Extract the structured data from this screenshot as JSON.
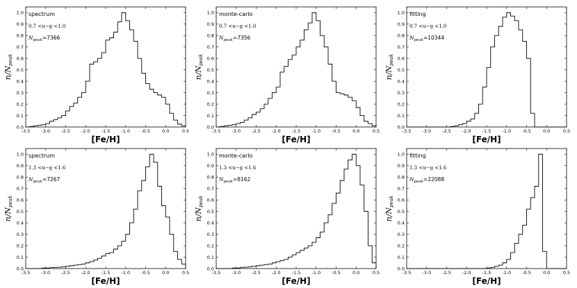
{
  "figure": {
    "xlabel": "[Fe/H]",
    "ylabel_main": "n/N",
    "ylabel_sub": "peak",
    "peak_label_main": "N",
    "peak_label_sub": "peak"
  },
  "chart_data": [
    {
      "type": "histogram",
      "title": "spectrum",
      "range_label": "0.7 <u−g <1.0",
      "n_peak": "=7366",
      "xlim": [
        -3.5,
        0.5
      ],
      "ylim": [
        0,
        1.05
      ],
      "xticks": [
        "-3.5",
        "-3.0",
        "-2.5",
        "-2.0",
        "-1.5",
        "-1.0",
        "-0.5",
        "0.0",
        "0.5"
      ],
      "yticks": [
        "0.0",
        "0.1",
        "0.2",
        "0.3",
        "0.4",
        "0.5",
        "0.6",
        "0.7",
        "0.8",
        "0.9",
        "1.0"
      ],
      "bin_start": -3.5,
      "bin_width": 0.1,
      "values": [
        0.0,
        0.005,
        0.01,
        0.015,
        0.02,
        0.03,
        0.05,
        0.065,
        0.08,
        0.1,
        0.14,
        0.18,
        0.21,
        0.26,
        0.3,
        0.4,
        0.55,
        0.57,
        0.6,
        0.65,
        0.76,
        0.78,
        0.83,
        0.92,
        1.0,
        0.93,
        0.85,
        0.75,
        0.6,
        0.47,
        0.38,
        0.33,
        0.3,
        0.28,
        0.26,
        0.2,
        0.12,
        0.06,
        0.025,
        0.01
      ]
    },
    {
      "type": "histogram",
      "title": "monte-carlo",
      "range_label": "0.7 <u−g <1.0",
      "n_peak": "=7356",
      "xlim": [
        -3.5,
        0.5
      ],
      "ylim": [
        0,
        1.05
      ],
      "xticks": [
        "-3.5",
        "-3.0",
        "-2.5",
        "-2.0",
        "-1.5",
        "-1.0",
        "-0.5",
        "0.0",
        "0.5"
      ],
      "yticks": [
        "0.0",
        "0.1",
        "0.2",
        "0.3",
        "0.4",
        "0.5",
        "0.6",
        "0.7",
        "0.8",
        "0.9",
        "1.0"
      ],
      "bin_start": -3.5,
      "bin_width": 0.1,
      "values": [
        0.0,
        0.005,
        0.01,
        0.015,
        0.02,
        0.03,
        0.04,
        0.06,
        0.08,
        0.11,
        0.13,
        0.16,
        0.2,
        0.25,
        0.3,
        0.35,
        0.48,
        0.53,
        0.59,
        0.63,
        0.7,
        0.76,
        0.85,
        0.91,
        1.0,
        0.93,
        0.8,
        0.7,
        0.55,
        0.4,
        0.3,
        0.29,
        0.28,
        0.26,
        0.23,
        0.17,
        0.1,
        0.05,
        0.03,
        0.01
      ]
    },
    {
      "type": "histogram",
      "title": "fitting",
      "range_label": "0.7 <u−g <1.0",
      "n_peak": "=10344",
      "xlim": [
        -3.5,
        0.5
      ],
      "ylim": [
        0,
        1.05
      ],
      "xticks": [
        "-3.5",
        "-3.0",
        "-2.5",
        "-2.0",
        "-1.5",
        "-1.0",
        "-0.5",
        "0.0",
        "0.5"
      ],
      "yticks": [
        "0.0",
        "0.1",
        "0.2",
        "0.3",
        "0.4",
        "0.5",
        "0.6",
        "0.7",
        "0.8",
        "0.9",
        "1.0"
      ],
      "bin_start": -3.5,
      "bin_width": 0.1,
      "values": [
        0,
        0,
        0,
        0,
        0,
        0,
        0,
        0,
        0,
        0,
        0,
        0.005,
        0.01,
        0.02,
        0.03,
        0.05,
        0.07,
        0.12,
        0.2,
        0.35,
        0.52,
        0.7,
        0.8,
        0.88,
        0.96,
        1.0,
        0.97,
        0.93,
        0.85,
        0.75,
        0.6,
        0.12,
        0,
        0,
        0,
        0,
        0,
        0,
        0,
        0
      ]
    },
    {
      "type": "histogram",
      "title": "spectrum",
      "range_label": "1.3 <u−g <1.6",
      "n_peak": "=7267",
      "xlim": [
        -3.5,
        0.5
      ],
      "ylim": [
        0,
        1.05
      ],
      "xticks": [
        "-3.5",
        "-3.0",
        "-2.5",
        "-2.0",
        "-1.5",
        "-1.0",
        "-0.5",
        "0.0",
        "0.5"
      ],
      "yticks": [
        "0.0",
        "0.1",
        "0.2",
        "0.3",
        "0.4",
        "0.5",
        "0.6",
        "0.7",
        "0.8",
        "0.9",
        "1.0"
      ],
      "bin_start": -3.5,
      "bin_width": 0.1,
      "values": [
        0.0,
        0.0,
        0.0,
        0.0,
        0.005,
        0.005,
        0.008,
        0.01,
        0.012,
        0.015,
        0.02,
        0.025,
        0.03,
        0.035,
        0.04,
        0.05,
        0.06,
        0.075,
        0.09,
        0.11,
        0.13,
        0.14,
        0.17,
        0.2,
        0.24,
        0.3,
        0.4,
        0.52,
        0.68,
        0.77,
        0.89,
        1.0,
        0.93,
        0.72,
        0.55,
        0.45,
        0.3,
        0.15,
        0.08,
        0.04
      ]
    },
    {
      "type": "histogram",
      "title": "monte-carlo",
      "range_label": "1.3 <u−g <1.6",
      "n_peak": "=8162",
      "xlim": [
        -3.5,
        0.5
      ],
      "ylim": [
        0,
        1.05
      ],
      "xticks": [
        "-3.5",
        "-3.0",
        "-2.5",
        "-2.0",
        "-1.5",
        "-1.0",
        "-0.5",
        "0.0",
        "0.5"
      ],
      "yticks": [
        "0.0",
        "0.1",
        "0.2",
        "0.3",
        "0.4",
        "0.5",
        "0.6",
        "0.7",
        "0.8",
        "0.9",
        "1.0"
      ],
      "bin_start": -3.5,
      "bin_width": 0.1,
      "values": [
        0.0,
        0.0,
        0.0,
        0.0,
        0.005,
        0.005,
        0.01,
        0.012,
        0.015,
        0.02,
        0.025,
        0.03,
        0.035,
        0.04,
        0.05,
        0.06,
        0.07,
        0.08,
        0.1,
        0.12,
        0.14,
        0.16,
        0.18,
        0.2,
        0.23,
        0.27,
        0.32,
        0.4,
        0.47,
        0.57,
        0.66,
        0.77,
        0.87,
        0.95,
        1.0,
        0.9,
        0.73,
        0.5,
        0.2,
        0.05
      ]
    },
    {
      "type": "histogram",
      "title": "fitting",
      "range_label": "1.3 <u−g <1.6",
      "n_peak": "=22088",
      "xlim": [
        -3.5,
        0.5
      ],
      "ylim": [
        0,
        1.05
      ],
      "xticks": [
        "-3.5",
        "-3.0",
        "-2.5",
        "-2.0",
        "-1.5",
        "-1.0",
        "-0.5",
        "0.0",
        "0.5"
      ],
      "yticks": [
        "0.0",
        "0.1",
        "0.2",
        "0.3",
        "0.4",
        "0.5",
        "0.6",
        "0.7",
        "0.8",
        "0.9",
        "1.0"
      ],
      "bin_start": -3.5,
      "bin_width": 0.1,
      "values": [
        0,
        0,
        0,
        0,
        0,
        0,
        0,
        0,
        0,
        0,
        0,
        0,
        0,
        0,
        0,
        0,
        0,
        0,
        0,
        0,
        0.005,
        0.01,
        0.02,
        0.03,
        0.05,
        0.08,
        0.14,
        0.22,
        0.3,
        0.38,
        0.52,
        0.62,
        0.72,
        1.0,
        0.15,
        0,
        0,
        0,
        0,
        0
      ]
    }
  ]
}
